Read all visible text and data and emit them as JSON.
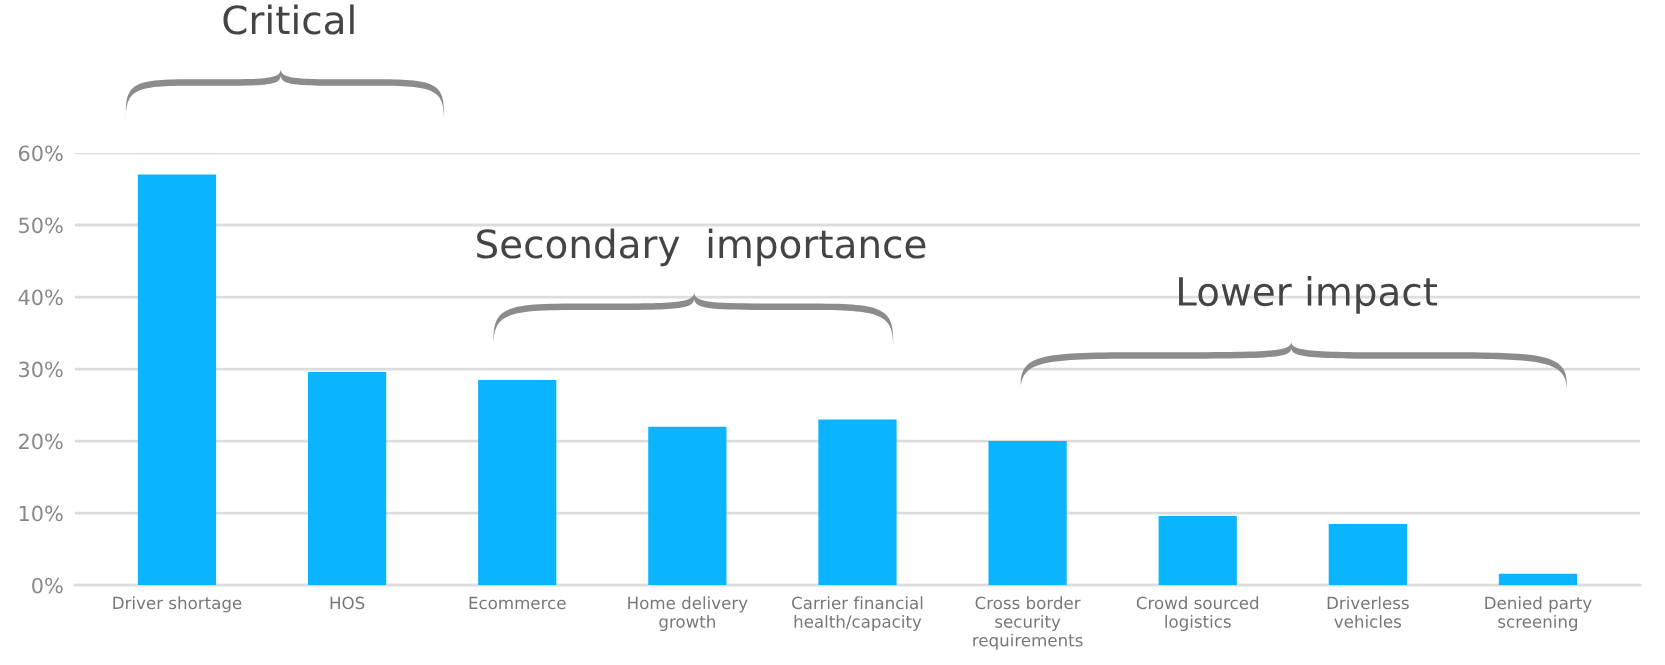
{
  "chart_data": {
    "type": "bar",
    "categories": [
      "Driver shortage",
      "HOS",
      "Ecommerce",
      "Home delivery\ngrowth",
      "Carrier financial\nhealth/capacity",
      "Cross border\nsecurity\nrequirements",
      "Crowd sourced\nlogistics",
      "Driverless\nvehicles",
      "Denied party\nscreening"
    ],
    "values": [
      57,
      29.6,
      28.5,
      22,
      23,
      20,
      9.6,
      8.5,
      1.6
    ],
    "color": "#0bb4ff",
    "ylim": [
      0,
      60
    ],
    "yticks": [
      {
        "value": 0,
        "label": "0%"
      },
      {
        "value": 10,
        "label": "10%"
      },
      {
        "value": 20,
        "label": "20%"
      },
      {
        "value": 30,
        "label": "30%"
      },
      {
        "value": 40,
        "label": "40%"
      },
      {
        "value": 50,
        "label": "50%"
      },
      {
        "value": 60,
        "label": "60%"
      }
    ],
    "grid": "y",
    "annotations": [
      "Critical",
      "Secondary  importance",
      "Lower impact"
    ]
  }
}
